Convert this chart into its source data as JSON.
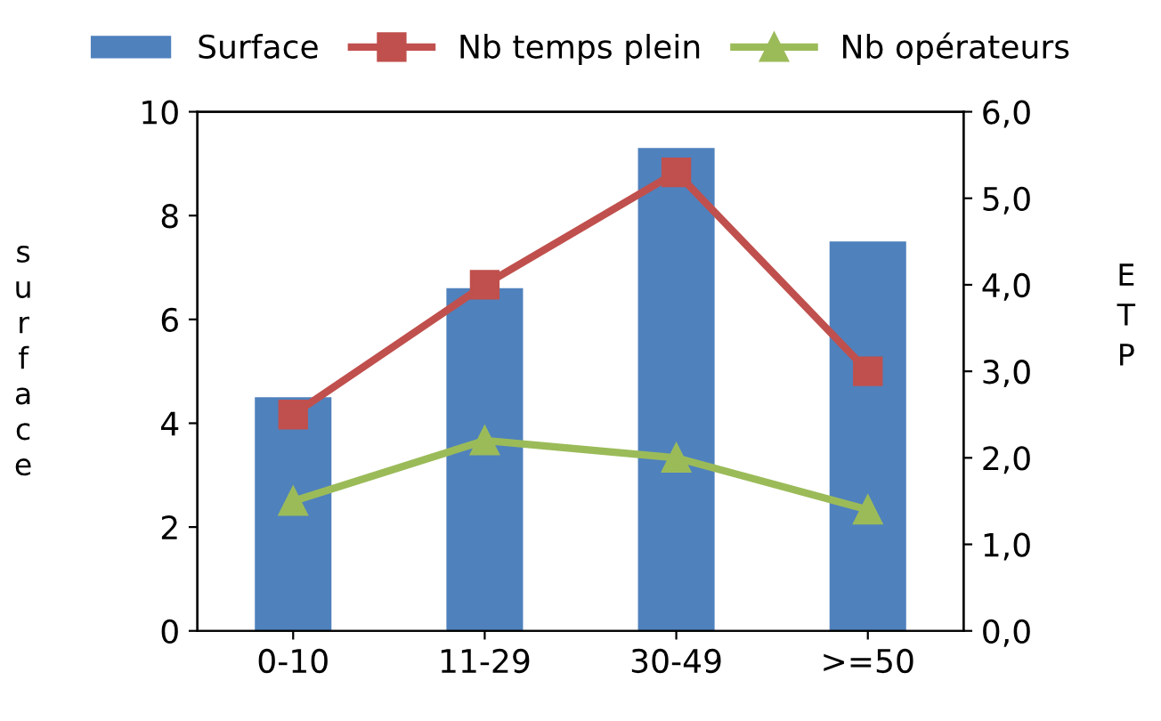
{
  "chart_data": {
    "type": "bar",
    "categories": [
      "0-10",
      "11-29",
      "30-49",
      ">=50"
    ],
    "ylabel": "surface",
    "y2label": "ETP",
    "legend": "top",
    "grid": false,
    "ylim": [
      0,
      10
    ],
    "yticks": [
      0,
      2,
      4,
      6,
      8,
      10
    ],
    "y2lim": [
      0,
      6
    ],
    "y2ticks": [
      {
        "value": 0,
        "label": "0,0"
      },
      {
        "value": 1,
        "label": "1,0"
      },
      {
        "value": 2,
        "label": "2,0"
      },
      {
        "value": 3,
        "label": "3,0"
      },
      {
        "value": 4,
        "label": "4,0"
      },
      {
        "value": 5,
        "label": "5,0"
      },
      {
        "value": 6,
        "label": "6,0"
      }
    ],
    "series": [
      {
        "name": "Surface",
        "color": "#4f81bd",
        "values": [
          4.5,
          6.6,
          9.3,
          7.5
        ]
      },
      {
        "name": "Nb temps plein",
        "type": "line",
        "axis": "y2",
        "marker": "square",
        "color": "#c0504d",
        "values": [
          2.5,
          4.0,
          5.3,
          3.0
        ]
      },
      {
        "name": "Nb opérateurs",
        "type": "line",
        "axis": "y2",
        "marker": "triangle",
        "color": "#9bbb59",
        "values": [
          1.5,
          2.2,
          2.0,
          1.4
        ]
      }
    ]
  }
}
